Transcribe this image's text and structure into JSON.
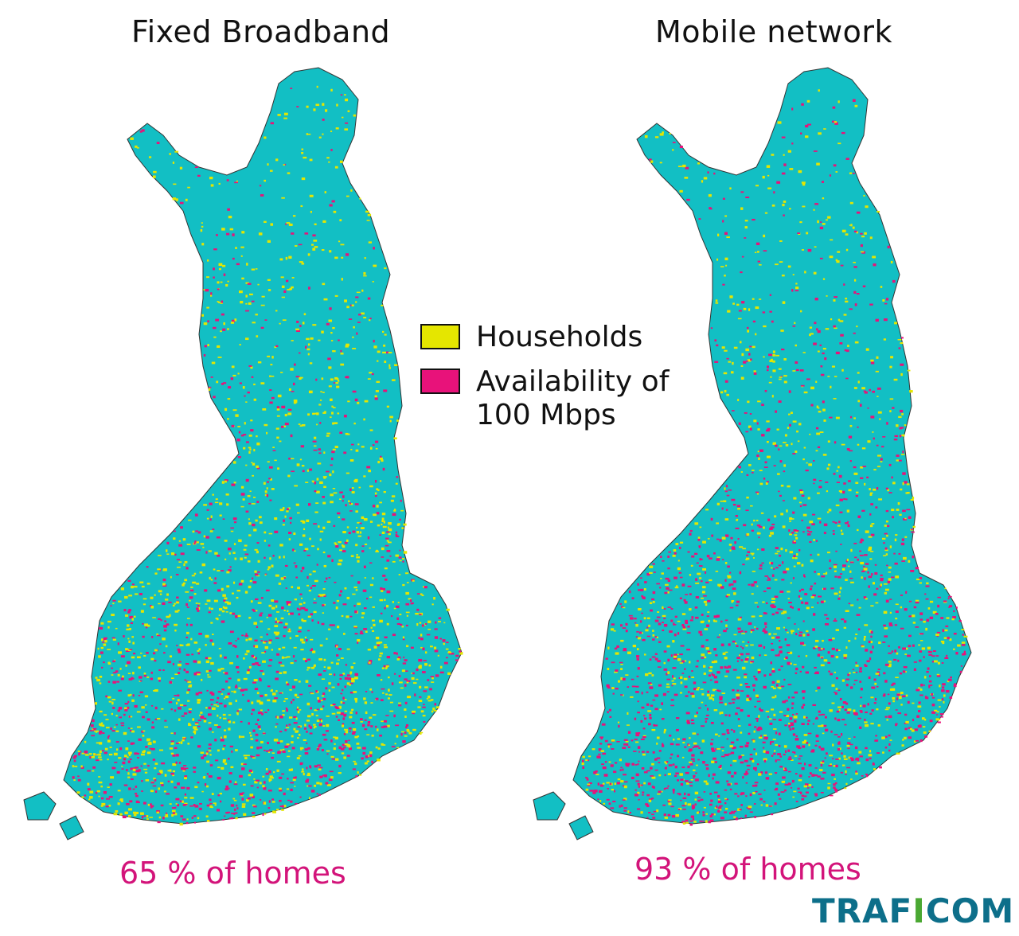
{
  "maps": [
    {
      "title": "Fixed Broadband",
      "stat": "65 % of homes",
      "coverage_percent": 65
    },
    {
      "title": "Mobile network",
      "stat": "93 % of homes",
      "coverage_percent": 93
    }
  ],
  "legend": {
    "households": "Households",
    "availability_line1": "Availability of",
    "availability_line2": "100 Mbps"
  },
  "logo": {
    "text_part1": "TRAF",
    "text_part2": "I",
    "text_part3": "COM"
  },
  "colors": {
    "land": "#12bfc4",
    "households": "#e5e600",
    "availability": "#e8127a",
    "stat_text": "#d3147a",
    "logo_blue": "#0d6f8a",
    "logo_green": "#4aa832"
  }
}
